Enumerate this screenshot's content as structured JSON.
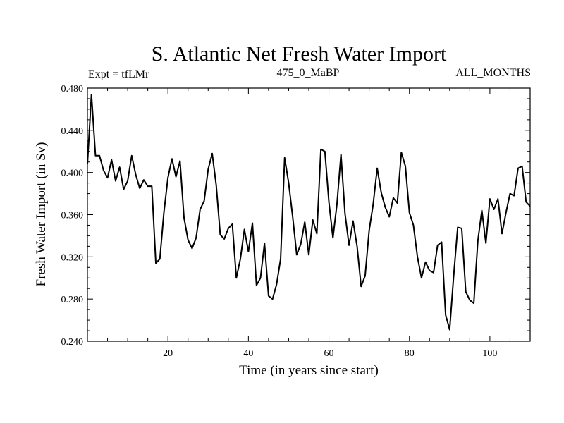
{
  "chart_data": {
    "type": "line",
    "title": "S. Atlantic Net Fresh Water Import",
    "subtitle_left": "Expt = tfLMr",
    "subtitle_center": "475_0_MaBP",
    "subtitle_right": "ALL_MONTHS",
    "xlabel": "Time (in years since start)",
    "ylabel": "Fresh Water Import (in Sv)",
    "xlim": [
      0,
      110
    ],
    "ylim": [
      0.24,
      0.48
    ],
    "xticks": [
      20,
      40,
      60,
      80,
      100
    ],
    "xtick_labels": [
      "20",
      "40",
      "60",
      "80",
      "100"
    ],
    "yticks": [
      0.24,
      0.28,
      0.32,
      0.36,
      0.4,
      0.44,
      0.48
    ],
    "ytick_labels": [
      "0.240",
      "0.280",
      "0.320",
      "0.360",
      "0.400",
      "0.440",
      "0.480"
    ],
    "grid": false,
    "series": [
      {
        "name": "Fresh Water Import",
        "x": [
          0,
          1,
          2,
          3,
          4,
          5,
          6,
          7,
          8,
          9,
          10,
          11,
          12,
          13,
          14,
          15,
          16,
          17,
          18,
          19,
          20,
          21,
          22,
          23,
          24,
          25,
          26,
          27,
          28,
          29,
          30,
          31,
          32,
          33,
          34,
          35,
          36,
          37,
          38,
          39,
          40,
          41,
          42,
          43,
          44,
          45,
          46,
          47,
          48,
          49,
          50,
          51,
          52,
          53,
          54,
          55,
          56,
          57,
          58,
          59,
          60,
          61,
          62,
          63,
          64,
          65,
          66,
          67,
          68,
          69,
          70,
          71,
          72,
          73,
          74,
          75,
          76,
          77,
          78,
          79,
          80,
          81,
          82,
          83,
          84,
          85,
          86,
          87,
          88,
          89,
          90,
          91,
          92,
          93,
          94,
          95,
          96,
          97,
          98,
          99,
          100,
          101,
          102,
          103,
          104,
          105,
          106,
          107,
          108,
          109,
          110
        ],
        "values": [
          0.408,
          0.474,
          0.416,
          0.416,
          0.402,
          0.395,
          0.412,
          0.392,
          0.405,
          0.384,
          0.392,
          0.416,
          0.398,
          0.385,
          0.393,
          0.387,
          0.387,
          0.314,
          0.318,
          0.362,
          0.395,
          0.413,
          0.396,
          0.411,
          0.357,
          0.336,
          0.328,
          0.338,
          0.365,
          0.373,
          0.403,
          0.418,
          0.388,
          0.341,
          0.337,
          0.347,
          0.351,
          0.3,
          0.318,
          0.346,
          0.325,
          0.352,
          0.293,
          0.3,
          0.333,
          0.283,
          0.28,
          0.294,
          0.318,
          0.414,
          0.39,
          0.358,
          0.322,
          0.332,
          0.353,
          0.322,
          0.355,
          0.342,
          0.422,
          0.42,
          0.372,
          0.338,
          0.37,
          0.417,
          0.361,
          0.331,
          0.354,
          0.33,
          0.292,
          0.302,
          0.345,
          0.37,
          0.404,
          0.381,
          0.367,
          0.358,
          0.376,
          0.371,
          0.419,
          0.406,
          0.362,
          0.35,
          0.32,
          0.3,
          0.315,
          0.307,
          0.305,
          0.331,
          0.334,
          0.265,
          0.251,
          0.302,
          0.348,
          0.347,
          0.287,
          0.279,
          0.276,
          0.335,
          0.364,
          0.333,
          0.375,
          0.365,
          0.375,
          0.342,
          0.362,
          0.38,
          0.378,
          0.404,
          0.406,
          0.372,
          0.368
        ]
      }
    ]
  }
}
